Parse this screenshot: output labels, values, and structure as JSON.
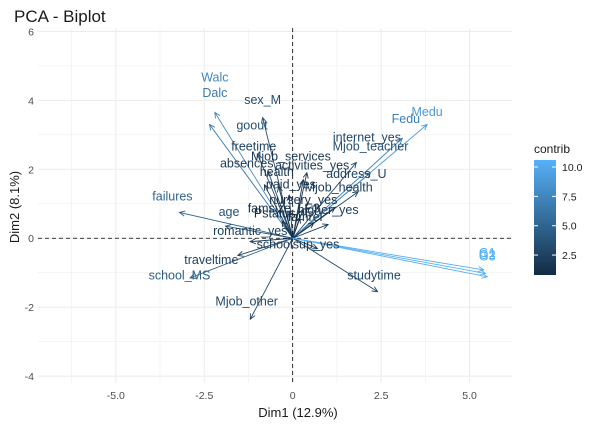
{
  "chart_data": {
    "type": "scatter",
    "title": "PCA - Biplot",
    "xlabel": "Dim1 (12.9%)",
    "ylabel": "Dim2 (8.1%)",
    "xlim": [
      -7.2,
      6.2
    ],
    "ylim": [
      -4.2,
      6.1
    ],
    "xticks": [
      -5.0,
      -2.5,
      0.0,
      2.5,
      5.0
    ],
    "yticks": [
      -4,
      -2,
      0,
      2,
      4,
      6
    ],
    "xtick_labels": [
      "-5.0",
      "-2.5",
      "0",
      "2.5",
      "5.0"
    ],
    "ytick_labels": [
      "-4",
      "-2",
      "0",
      "2",
      "4",
      "6"
    ],
    "grid": true,
    "reference_lines": {
      "x": 0,
      "y": 0,
      "style": "dashed"
    },
    "legend": {
      "title": "contrib",
      "placement": "right",
      "range": [
        0.8,
        10.6
      ],
      "ticks": [
        2.5,
        5.0,
        7.5,
        10.0
      ],
      "tick_labels": [
        "2.5",
        "5.0",
        "7.5",
        "10.0"
      ],
      "low_color": "#132b43",
      "high_color": "#56b1f7"
    },
    "vectors": [
      {
        "name": "Walc",
        "x": -2.2,
        "y": 3.65,
        "contrib": 7.5
      },
      {
        "name": "Dalc",
        "x": -2.35,
        "y": 3.3,
        "contrib": 6.5
      },
      {
        "name": "sex_M",
        "x": -0.85,
        "y": 3.5,
        "contrib": 3.2
      },
      {
        "name": "goout",
        "x": -1.0,
        "y": 2.45,
        "contrib": 3.5
      },
      {
        "name": "freetime",
        "x": -0.7,
        "y": 1.95,
        "contrib": 2.5
      },
      {
        "name": "absences",
        "x": -0.8,
        "y": 1.55,
        "contrib": 2.0
      },
      {
        "name": "health",
        "x": -0.4,
        "y": 1.5,
        "contrib": 1.5
      },
      {
        "name": "activities_yes",
        "x": 0.3,
        "y": 1.7,
        "contrib": 1.8
      },
      {
        "name": "Mjob_services",
        "x": 0.4,
        "y": 1.9,
        "contrib": 1.9
      },
      {
        "name": "internet_yes",
        "x": 1.8,
        "y": 2.2,
        "contrib": 3.0
      },
      {
        "name": "Mjob_teacher",
        "x": 2.2,
        "y": 1.9,
        "contrib": 3.5
      },
      {
        "name": "Medu",
        "x": 3.8,
        "y": 3.3,
        "contrib": 9.0
      },
      {
        "name": "Fedu",
        "x": 3.1,
        "y": 2.9,
        "contrib": 7.0
      },
      {
        "name": "address_U",
        "x": 1.85,
        "y": 1.35,
        "contrib": 2.5
      },
      {
        "name": "Mjob_health",
        "x": 1.2,
        "y": 0.9,
        "contrib": 2.0
      },
      {
        "name": "paid_yes",
        "x": -0.1,
        "y": 1.25,
        "contrib": 1.5
      },
      {
        "name": "nursery_yes",
        "x": 0.3,
        "y": 0.85,
        "contrib": 1.2
      },
      {
        "name": "famsize_LE3",
        "x": 0.2,
        "y": 0.6,
        "contrib": 1.2
      },
      {
        "name": "Pstatus_T",
        "x": -0.3,
        "y": 0.5,
        "contrib": 1.0
      },
      {
        "name": "famrel",
        "x": 0.6,
        "y": 0.45,
        "contrib": 1.0
      },
      {
        "name": "higher_yes",
        "x": 1.0,
        "y": 0.4,
        "contrib": 2.0
      },
      {
        "name": "failures",
        "x": -3.2,
        "y": 0.75,
        "contrib": 5.0
      },
      {
        "name": "age",
        "x": -1.9,
        "y": 0.35,
        "contrib": 3.5
      },
      {
        "name": "romantic_yes",
        "x": -1.2,
        "y": -0.1,
        "contrib": 2.0
      },
      {
        "name": "schoolsup_yes",
        "x": 0.7,
        "y": -0.3,
        "contrib": 1.8
      },
      {
        "name": "traveltime",
        "x": -1.55,
        "y": -0.5,
        "contrib": 2.5
      },
      {
        "name": "school_MS",
        "x": -2.9,
        "y": -1.15,
        "contrib": 4.5
      },
      {
        "name": "Mjob_other",
        "x": -1.2,
        "y": -2.35,
        "contrib": 3.0
      },
      {
        "name": "studytime",
        "x": 2.4,
        "y": -1.55,
        "contrib": 3.0
      },
      {
        "name": "G1",
        "x": 5.4,
        "y": -0.92,
        "contrib": 10.3
      },
      {
        "name": "G2",
        "x": 5.45,
        "y": -1.02,
        "contrib": 10.5
      },
      {
        "name": "G3",
        "x": 5.5,
        "y": -1.12,
        "contrib": 10.6
      }
    ],
    "point_labels": [
      {
        "text": "Walc",
        "x": -2.2,
        "y": 4.55
      },
      {
        "text": "Dalc",
        "x": -2.2,
        "y": 4.1
      },
      {
        "text": "sex_M",
        "x": -0.85,
        "y": 3.9
      },
      {
        "text": "goout",
        "x": -1.15,
        "y": 3.15
      },
      {
        "text": "freetime",
        "x": -1.1,
        "y": 2.55
      },
      {
        "text": "absences",
        "x": -1.3,
        "y": 2.05
      },
      {
        "text": "health",
        "x": -0.45,
        "y": 1.8
      },
      {
        "text": "activities_yes",
        "x": 0.55,
        "y": 2.0
      },
      {
        "text": "Mjob_services",
        "x": -0.05,
        "y": 2.25
      },
      {
        "text": "internet_yes",
        "x": 2.1,
        "y": 2.8
      },
      {
        "text": "Mjob_teacher",
        "x": 2.2,
        "y": 2.55
      },
      {
        "text": "Medu",
        "x": 3.8,
        "y": 3.55
      },
      {
        "text": "Fedu",
        "x": 3.2,
        "y": 3.35
      },
      {
        "text": "address_U",
        "x": 1.8,
        "y": 1.75
      },
      {
        "text": "Mjob_health",
        "x": 1.3,
        "y": 1.35
      },
      {
        "text": "paid_yes",
        "x": -0.05,
        "y": 1.45
      },
      {
        "text": "nursery_yes",
        "x": 0.3,
        "y": 1.0
      },
      {
        "text": "famsize_LE3",
        "x": -0.25,
        "y": 0.75
      },
      {
        "text": "Pstatus_T",
        "x": -0.3,
        "y": 0.6
      },
      {
        "text": "famrel",
        "x": 0.35,
        "y": 0.5
      },
      {
        "text": "higher_yes",
        "x": 1.0,
        "y": 0.7
      },
      {
        "text": "failures",
        "x": -3.4,
        "y": 1.1
      },
      {
        "text": "age",
        "x": -1.8,
        "y": 0.65
      },
      {
        "text": "romantic_yes",
        "x": -1.2,
        "y": 0.1
      },
      {
        "text": "schoolsup_yes",
        "x": 0.15,
        "y": -0.3
      },
      {
        "text": "traveltime",
        "x": -2.3,
        "y": -0.75
      },
      {
        "text": "school_MS",
        "x": -3.2,
        "y": -1.2
      },
      {
        "text": "Mjob_other",
        "x": -1.3,
        "y": -1.95
      },
      {
        "text": "studytime",
        "x": 2.3,
        "y": -1.2
      },
      {
        "text": "G1",
        "x": 5.5,
        "y": -0.55
      },
      {
        "text": "G2",
        "x": 5.5,
        "y": -0.6
      },
      {
        "text": "G3",
        "x": 5.5,
        "y": -0.65
      }
    ]
  }
}
